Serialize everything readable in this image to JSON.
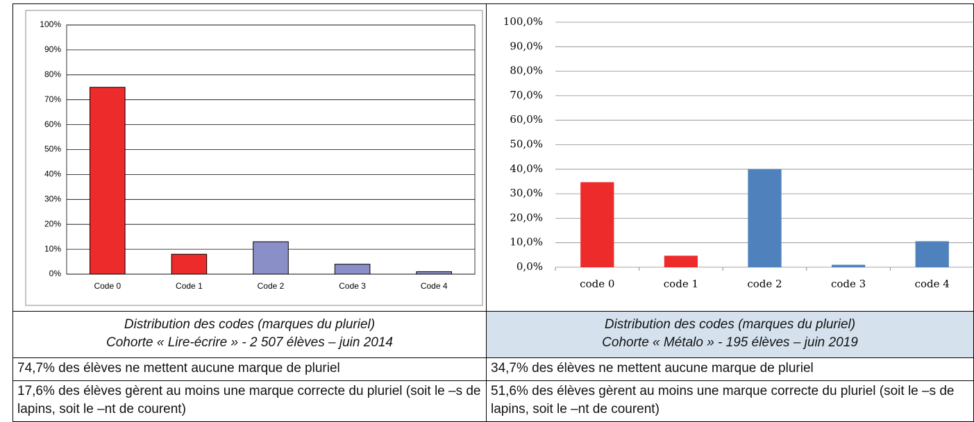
{
  "chart_data": [
    {
      "type": "bar",
      "categories": [
        "Code 0",
        "Code 1",
        "Code 2",
        "Code 3",
        "Code 4"
      ],
      "values": [
        75,
        8,
        13,
        4,
        1
      ],
      "colors": [
        "#ee2b2b",
        "#ee2b2b",
        "#8b8fc8",
        "#8b8fc8",
        "#8b8fc8"
      ],
      "ylim": [
        0,
        100
      ],
      "yticks": [
        {
          "value": 0,
          "label": "0%"
        },
        {
          "value": 10,
          "label": "10%"
        },
        {
          "value": 20,
          "label": "20%"
        },
        {
          "value": 30,
          "label": "30%"
        },
        {
          "value": 40,
          "label": "40%"
        },
        {
          "value": 50,
          "label": "50%"
        },
        {
          "value": 60,
          "label": "60%"
        },
        {
          "value": 70,
          "label": "70%"
        },
        {
          "value": 80,
          "label": "80%"
        },
        {
          "value": 90,
          "label": "90%"
        },
        {
          "value": 100,
          "label": "100%"
        }
      ],
      "grid": true
    },
    {
      "type": "bar",
      "categories": [
        "code 0",
        "code 1",
        "code 2",
        "code 3",
        "code 4"
      ],
      "values": [
        34.7,
        4.7,
        40,
        1,
        10.6
      ],
      "colors": [
        "#ee2b2b",
        "#ee2b2b",
        "#4f81bd",
        "#4f81bd",
        "#4f81bd"
      ],
      "ylim": [
        0,
        100
      ],
      "yticks": [
        {
          "value": 0,
          "label": "0,0%"
        },
        {
          "value": 10,
          "label": "10,0%"
        },
        {
          "value": 20,
          "label": "20,0%"
        },
        {
          "value": 30,
          "label": "30,0%"
        },
        {
          "value": 40,
          "label": "40,0%"
        },
        {
          "value": 50,
          "label": "50,0%"
        },
        {
          "value": 60,
          "label": "60,0%"
        },
        {
          "value": 70,
          "label": "70,0%"
        },
        {
          "value": 80,
          "label": "80,0%"
        },
        {
          "value": 90,
          "label": "90,0%"
        },
        {
          "value": 100,
          "label": "100,0%"
        }
      ],
      "grid": true
    }
  ],
  "table": {
    "captions": [
      [
        "Distribution des codes (marques du pluriel)",
        "Cohorte « Lire-écrire » - 2 507 élèves – juin 2014"
      ],
      [
        "Distribution des codes (marques du pluriel)",
        "Cohorte « Métalo » - 195 élèves – juin 2019"
      ]
    ],
    "rows": [
      [
        "74,7% des élèves ne mettent aucune marque de pluriel",
        "34,7% des élèves ne mettent aucune marque de pluriel"
      ],
      [
        "17,6% des élèves gèrent au moins une marque correcte du pluriel (soit le –s de lapins, soit le –nt de courent)",
        "51,6% des élèves gèrent au moins une marque correcte du pluriel (soit le –s de lapins, soit le –nt de courent)"
      ]
    ]
  }
}
